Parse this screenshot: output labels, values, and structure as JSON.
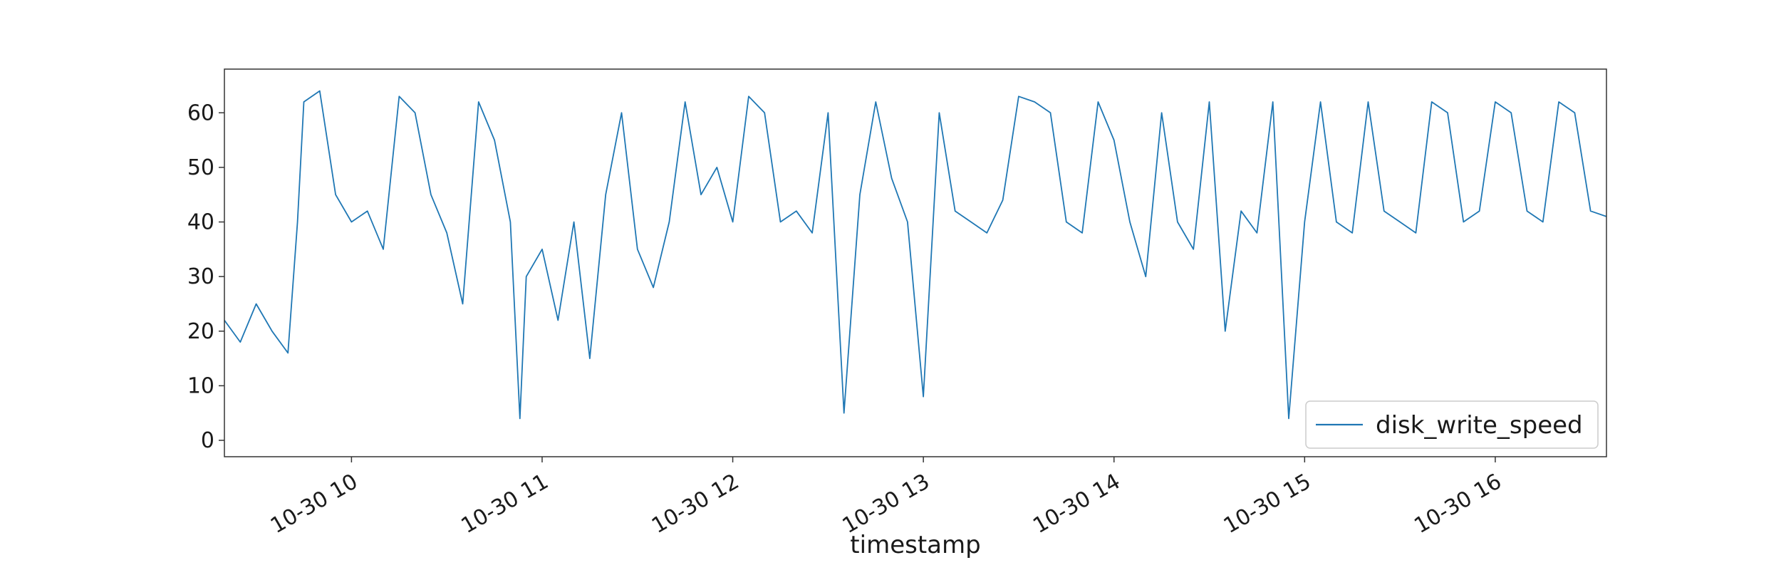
{
  "chart_data": {
    "type": "line",
    "title": "",
    "xlabel": "timestamp",
    "ylabel": "",
    "x_range": [
      "2023-10-30 09:20",
      "2023-10-30 16:35"
    ],
    "ylim": [
      -3,
      68
    ],
    "yticks": [
      0,
      10,
      20,
      30,
      40,
      50,
      60
    ],
    "xticks": [
      {
        "value": "2023-10-30 10:00",
        "label": "10-30 10"
      },
      {
        "value": "2023-10-30 11:00",
        "label": "10-30 11"
      },
      {
        "value": "2023-10-30 12:00",
        "label": "10-30 12"
      },
      {
        "value": "2023-10-30 13:00",
        "label": "10-30 13"
      },
      {
        "value": "2023-10-30 14:00",
        "label": "10-30 14"
      },
      {
        "value": "2023-10-30 15:00",
        "label": "10-30 15"
      },
      {
        "value": "2023-10-30 16:00",
        "label": "10-30 16"
      }
    ],
    "grid": false,
    "legend_position": "bottom-right",
    "series": [
      {
        "name": "disk_write_speed",
        "color": "#1f77b4",
        "x": [
          "2023-10-30 09:20",
          "2023-10-30 09:25",
          "2023-10-30 09:30",
          "2023-10-30 09:35",
          "2023-10-30 09:40",
          "2023-10-30 09:43",
          "2023-10-30 09:45",
          "2023-10-30 09:50",
          "2023-10-30 09:55",
          "2023-10-30 10:00",
          "2023-10-30 10:05",
          "2023-10-30 10:10",
          "2023-10-30 10:15",
          "2023-10-30 10:20",
          "2023-10-30 10:25",
          "2023-10-30 10:30",
          "2023-10-30 10:35",
          "2023-10-30 10:40",
          "2023-10-30 10:45",
          "2023-10-30 10:50",
          "2023-10-30 10:53",
          "2023-10-30 10:55",
          "2023-10-30 11:00",
          "2023-10-30 11:05",
          "2023-10-30 11:10",
          "2023-10-30 11:15",
          "2023-10-30 11:20",
          "2023-10-30 11:25",
          "2023-10-30 11:30",
          "2023-10-30 11:35",
          "2023-10-30 11:40",
          "2023-10-30 11:45",
          "2023-10-30 11:50",
          "2023-10-30 11:55",
          "2023-10-30 12:00",
          "2023-10-30 12:05",
          "2023-10-30 12:10",
          "2023-10-30 12:15",
          "2023-10-30 12:20",
          "2023-10-30 12:25",
          "2023-10-30 12:30",
          "2023-10-30 12:35",
          "2023-10-30 12:40",
          "2023-10-30 12:45",
          "2023-10-30 12:50",
          "2023-10-30 12:55",
          "2023-10-30 13:00",
          "2023-10-30 13:05",
          "2023-10-30 13:10",
          "2023-10-30 13:15",
          "2023-10-30 13:20",
          "2023-10-30 13:25",
          "2023-10-30 13:30",
          "2023-10-30 13:35",
          "2023-10-30 13:40",
          "2023-10-30 13:45",
          "2023-10-30 13:50",
          "2023-10-30 13:55",
          "2023-10-30 14:00",
          "2023-10-30 14:05",
          "2023-10-30 14:10",
          "2023-10-30 14:15",
          "2023-10-30 14:20",
          "2023-10-30 14:25",
          "2023-10-30 14:30",
          "2023-10-30 14:35",
          "2023-10-30 14:40",
          "2023-10-30 14:45",
          "2023-10-30 14:50",
          "2023-10-30 14:55",
          "2023-10-30 15:00",
          "2023-10-30 15:05",
          "2023-10-30 15:10",
          "2023-10-30 15:15",
          "2023-10-30 15:20",
          "2023-10-30 15:25",
          "2023-10-30 15:30",
          "2023-10-30 15:35",
          "2023-10-30 15:40",
          "2023-10-30 15:45",
          "2023-10-30 15:50",
          "2023-10-30 15:55",
          "2023-10-30 16:00",
          "2023-10-30 16:05",
          "2023-10-30 16:10",
          "2023-10-30 16:15",
          "2023-10-30 16:20",
          "2023-10-30 16:25",
          "2023-10-30 16:30",
          "2023-10-30 16:35"
        ],
        "y": [
          22,
          18,
          25,
          20,
          16,
          40,
          62,
          64,
          45,
          40,
          42,
          35,
          63,
          60,
          45,
          38,
          25,
          62,
          55,
          40,
          4,
          30,
          35,
          22,
          40,
          15,
          45,
          60,
          35,
          28,
          40,
          62,
          45,
          50,
          40,
          63,
          60,
          40,
          42,
          38,
          60,
          5,
          45,
          62,
          48,
          40,
          8,
          60,
          42,
          40,
          38,
          44,
          63,
          62,
          60,
          40,
          38,
          62,
          55,
          40,
          30,
          60,
          40,
          35,
          62,
          20,
          42,
          38,
          62,
          4,
          40,
          62,
          40,
          38,
          62,
          42,
          40,
          38,
          62,
          60,
          40,
          42,
          62,
          60,
          42,
          40,
          62,
          60,
          42,
          41
        ]
      }
    ]
  }
}
